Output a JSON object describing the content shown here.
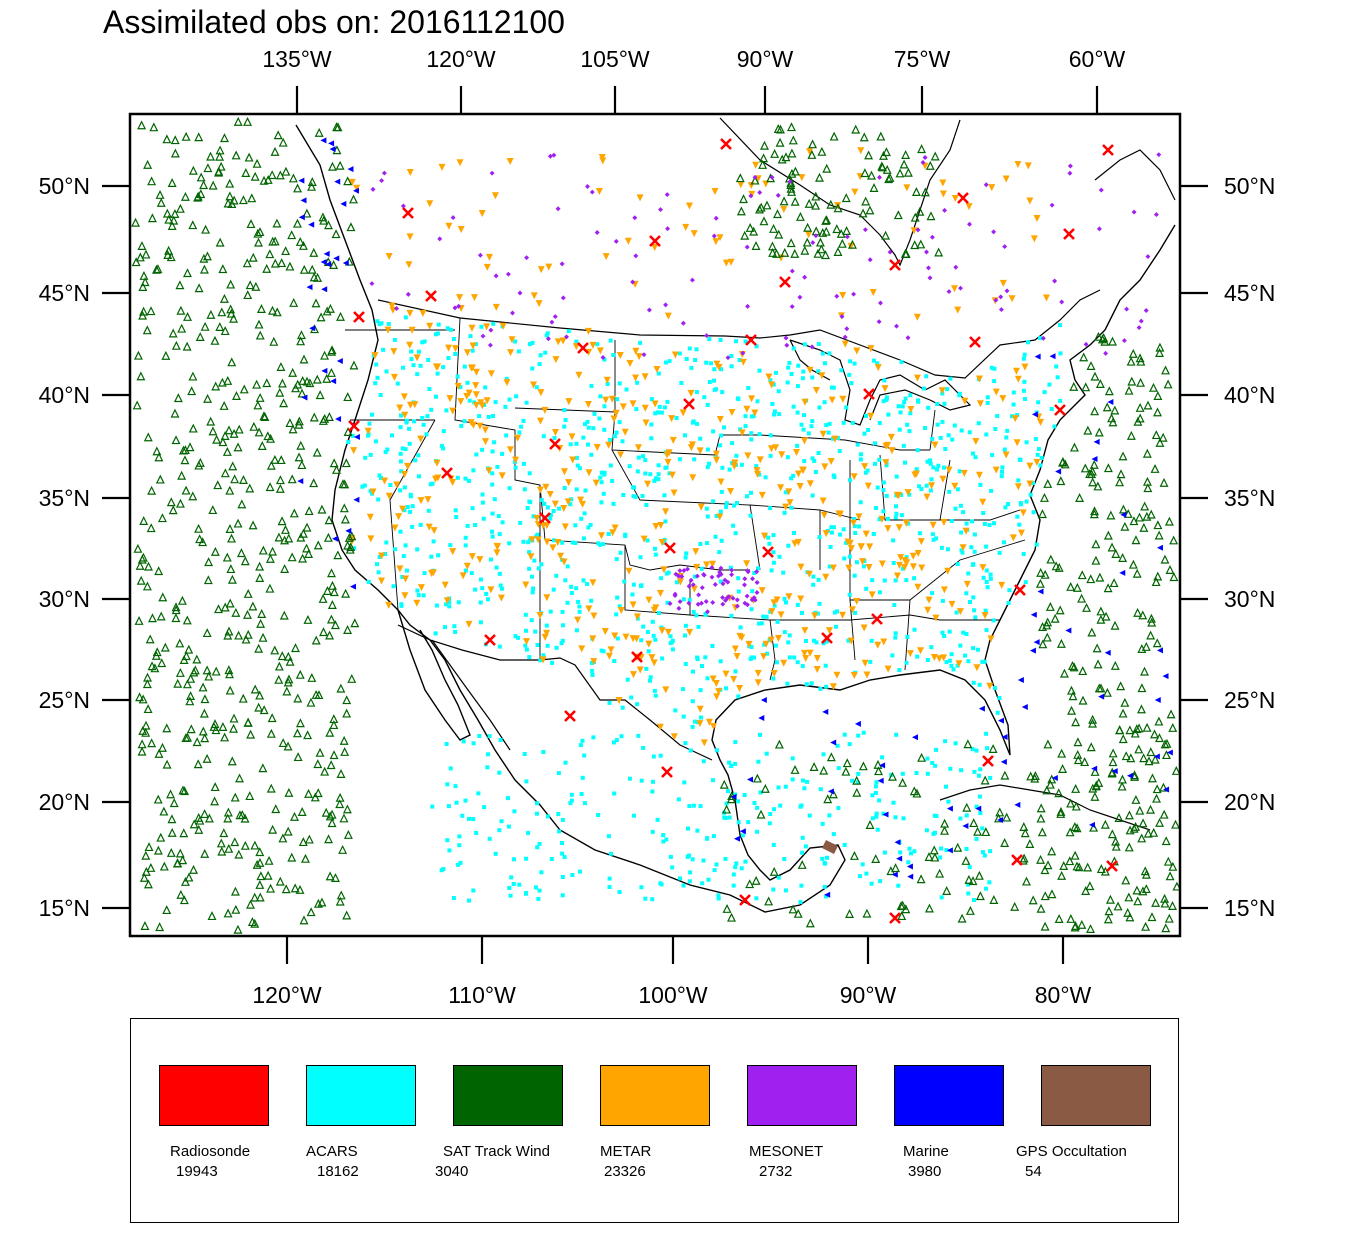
{
  "title": "Assimilated obs on: 2016112100",
  "axes": {
    "top_ticks": [
      "135°W",
      "120°W",
      "105°W",
      "90°W",
      "75°W",
      "60°W"
    ],
    "bottom_ticks": [
      "120°W",
      "110°W",
      "100°W",
      "90°W",
      "80°W"
    ],
    "lat_ticks": [
      "50°N",
      "45°N",
      "40°N",
      "35°N",
      "30°N",
      "25°N",
      "20°N",
      "15°N"
    ]
  },
  "legend": [
    {
      "name": "Radiosonde",
      "count": "19943",
      "color": "#ff0000"
    },
    {
      "name": "ACARS",
      "count": "18162",
      "color": "#00ffff"
    },
    {
      "name": "SAT Track Wind",
      "count": "3040",
      "color": "#006400"
    },
    {
      "name": "METAR",
      "count": "23326",
      "color": "#ffa500"
    },
    {
      "name": "MESONET",
      "count": "2732",
      "color": "#a020f0"
    },
    {
      "name": "Marine",
      "count": "3980",
      "color": "#0000ff"
    },
    {
      "name": "GPS Occultation",
      "count": "54",
      "color": "#8b5a44"
    }
  ]
}
